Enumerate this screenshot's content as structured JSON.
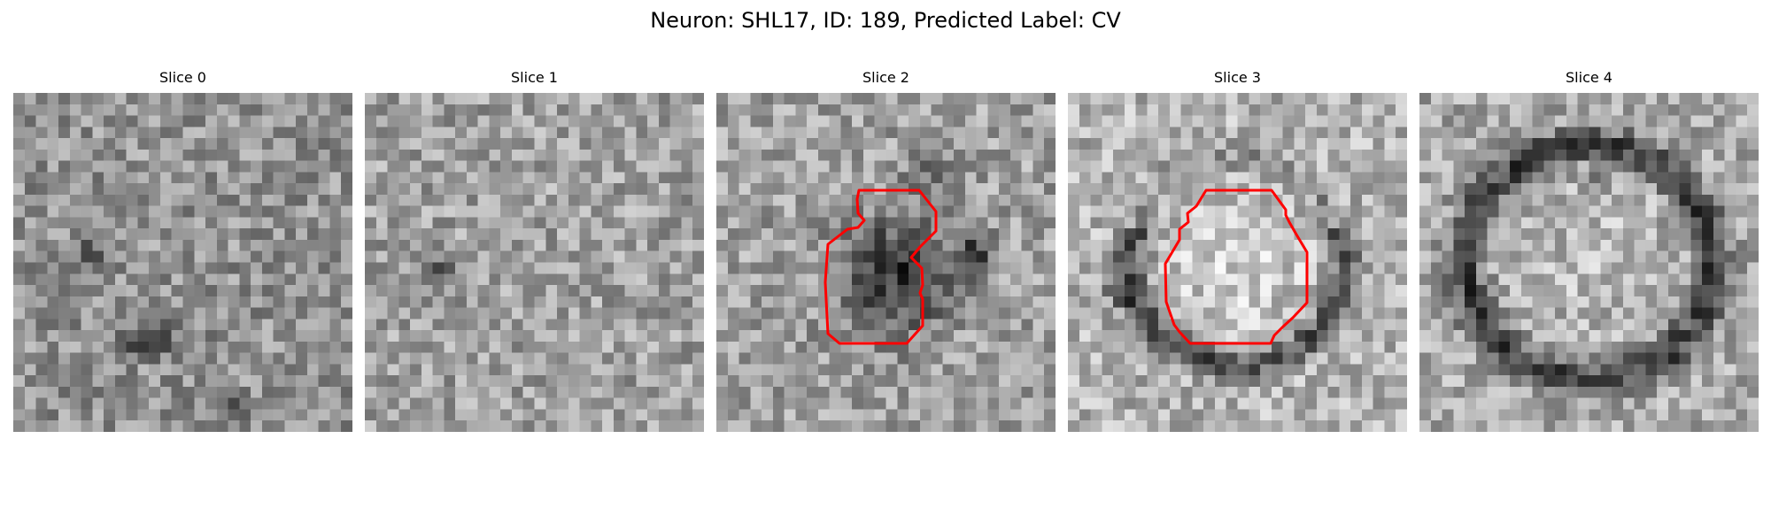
{
  "figure": {
    "title": "Neuron: SHL17, ID: 189, Predicted Label: CV"
  },
  "colors": {
    "contour": "#ff0000",
    "background": "#ffffff",
    "colormap": "grayscale"
  },
  "panels": [
    {
      "title": "Slice 0",
      "pattern": "noise-dark-spot",
      "has_contour": false
    },
    {
      "title": "Slice 1",
      "pattern": "noise",
      "has_contour": false
    },
    {
      "title": "Slice 2",
      "pattern": "dark-blob",
      "has_contour": true
    },
    {
      "title": "Slice 3",
      "pattern": "bright-center-dark-ring",
      "has_contour": true
    },
    {
      "title": "Slice 4",
      "pattern": "dark-ring",
      "has_contour": false
    }
  ]
}
